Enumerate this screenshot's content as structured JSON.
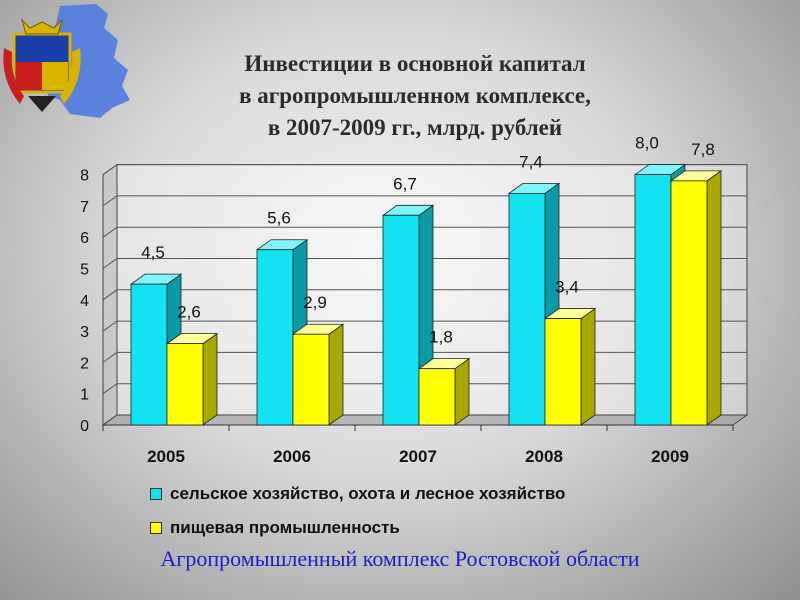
{
  "title_lines": [
    "Инвестиции в основной капитал",
    "в агропромышленном комплексе,",
    "в 2007-2009 гг., млрд. рублей"
  ],
  "footer": "Агропромышленный комплекс Ростовской области",
  "colors": {
    "series1": "#13e3f1",
    "series2": "#ffff00",
    "footer_text": "#1c1ccc"
  },
  "emblem_icon": "rostov-oblast-coat-of-arms-icon",
  "chart_data": {
    "type": "bar",
    "title": "Инвестиции в основной капитал в агропромышленном комплексе, в 2007-2009 гг., млрд. рублей",
    "categories": [
      "2005",
      "2006",
      "2007",
      "2008",
      "2009"
    ],
    "series": [
      {
        "name": "сельское хозяйство, охота и лесное хозяйство",
        "values": [
          4.5,
          5.6,
          6.7,
          7.4,
          8.0
        ],
        "labels": [
          "4,5",
          "5,6",
          "6,7",
          "7,4",
          "8,0"
        ]
      },
      {
        "name": "пищевая промышленность",
        "values": [
          2.6,
          2.9,
          1.8,
          3.4,
          7.8
        ],
        "labels": [
          "2,6",
          "2,9",
          "1,8",
          "3,4",
          "7,8"
        ]
      }
    ],
    "y_ticks": [
      "0",
      "1",
      "2",
      "3",
      "4",
      "5",
      "6",
      "7",
      "8"
    ],
    "ylim": [
      0,
      8
    ],
    "xlabel": "",
    "ylabel": "",
    "grid": true,
    "legend_position": "bottom",
    "style": "3d-bar"
  }
}
